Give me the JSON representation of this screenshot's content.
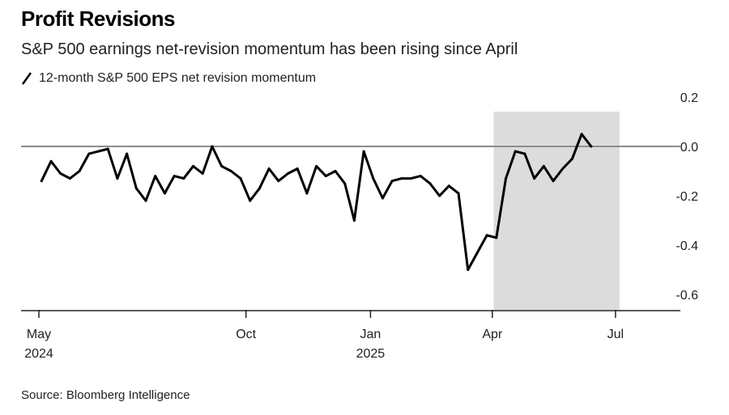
{
  "title": "Profit Revisions",
  "subtitle": "S&P 500 earnings net-revision momentum has been rising since April",
  "source": "Source: Bloomberg Intelligence",
  "colors": {
    "line": "#000000",
    "shade": "#dcdcdc",
    "zero_line": "#8c8c8c",
    "axis": "#222222"
  },
  "chart_data": {
    "type": "line",
    "title": "Profit Revisions",
    "subtitle": "S&P 500 earnings net-revision momentum has been rising since April",
    "xlabel": "",
    "ylabel": "",
    "ylim": [
      -0.65,
      0.25
    ],
    "y_ticks": [
      0.2,
      0.0,
      -0.2,
      -0.4,
      -0.6
    ],
    "y_tick_labels": [
      "0.2",
      "0.0",
      "-0.2",
      "-0.4",
      "-0.6"
    ],
    "x_ticks": [
      {
        "month": "2024-05",
        "line1": "May",
        "line2": "2024"
      },
      {
        "month": "2024-10",
        "line1": "Oct",
        "line2": ""
      },
      {
        "month": "2025-01",
        "line1": "Jan",
        "line2": "2025"
      },
      {
        "month": "2025-04",
        "line1": "Apr",
        "line2": ""
      },
      {
        "month": "2025-07",
        "line1": "Jul",
        "line2": ""
      }
    ],
    "x_range": [
      "2024-05-01",
      "2025-07-31"
    ],
    "shaded_region": [
      "2025-04-02",
      "2025-07-04"
    ],
    "reference_line_y": 0.0,
    "grid": false,
    "legend_position": "top-left",
    "series": [
      {
        "name": "12-month S&P 500 EPS net revision momentum",
        "points": [
          [
            "2024-05-03",
            -0.14
          ],
          [
            "2024-05-10",
            -0.06
          ],
          [
            "2024-05-17",
            -0.11
          ],
          [
            "2024-05-24",
            -0.13
          ],
          [
            "2024-05-31",
            -0.1
          ],
          [
            "2024-06-07",
            -0.03
          ],
          [
            "2024-06-14",
            -0.02
          ],
          [
            "2024-06-21",
            -0.01
          ],
          [
            "2024-06-28",
            -0.13
          ],
          [
            "2024-07-05",
            -0.03
          ],
          [
            "2024-07-12",
            -0.17
          ],
          [
            "2024-07-19",
            -0.22
          ],
          [
            "2024-07-26",
            -0.12
          ],
          [
            "2024-08-02",
            -0.19
          ],
          [
            "2024-08-09",
            -0.12
          ],
          [
            "2024-08-16",
            -0.13
          ],
          [
            "2024-08-23",
            -0.08
          ],
          [
            "2024-08-30",
            -0.11
          ],
          [
            "2024-09-06",
            0.0
          ],
          [
            "2024-09-13",
            -0.08
          ],
          [
            "2024-09-20",
            -0.1
          ],
          [
            "2024-09-27",
            -0.13
          ],
          [
            "2024-10-04",
            -0.22
          ],
          [
            "2024-10-11",
            -0.17
          ],
          [
            "2024-10-18",
            -0.09
          ],
          [
            "2024-10-25",
            -0.14
          ],
          [
            "2024-11-01",
            -0.11
          ],
          [
            "2024-11-08",
            -0.09
          ],
          [
            "2024-11-15",
            -0.19
          ],
          [
            "2024-11-22",
            -0.08
          ],
          [
            "2024-11-29",
            -0.12
          ],
          [
            "2024-12-06",
            -0.1
          ],
          [
            "2024-12-13",
            -0.15
          ],
          [
            "2024-12-20",
            -0.3
          ],
          [
            "2024-12-27",
            -0.02
          ],
          [
            "2025-01-03",
            -0.13
          ],
          [
            "2025-01-10",
            -0.21
          ],
          [
            "2025-01-17",
            -0.14
          ],
          [
            "2025-01-24",
            -0.13
          ],
          [
            "2025-01-31",
            -0.13
          ],
          [
            "2025-02-07",
            -0.12
          ],
          [
            "2025-02-14",
            -0.15
          ],
          [
            "2025-02-21",
            -0.2
          ],
          [
            "2025-02-28",
            -0.16
          ],
          [
            "2025-03-07",
            -0.19
          ],
          [
            "2025-03-14",
            -0.5
          ],
          [
            "2025-03-21",
            -0.43
          ],
          [
            "2025-03-28",
            -0.36
          ],
          [
            "2025-04-04",
            -0.37
          ],
          [
            "2025-04-11",
            -0.13
          ],
          [
            "2025-04-18",
            -0.02
          ],
          [
            "2025-04-25",
            -0.03
          ],
          [
            "2025-05-02",
            -0.13
          ],
          [
            "2025-05-09",
            -0.08
          ],
          [
            "2025-05-16",
            -0.14
          ],
          [
            "2025-05-23",
            -0.09
          ],
          [
            "2025-05-30",
            -0.05
          ],
          [
            "2025-06-06",
            0.05
          ],
          [
            "2025-06-13",
            0.0
          ]
        ]
      }
    ]
  }
}
